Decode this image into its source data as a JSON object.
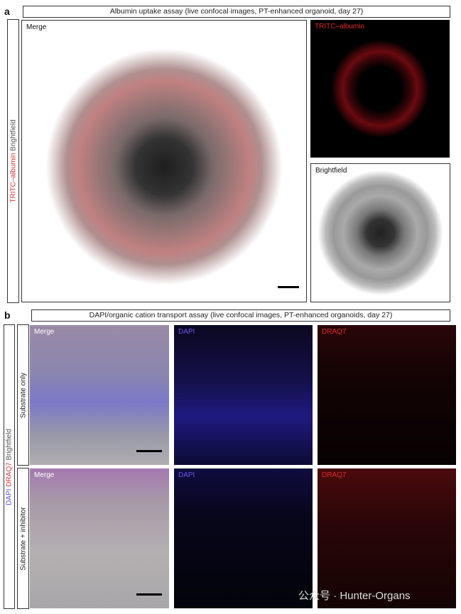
{
  "panel_a": {
    "letter": "a",
    "title": "Albumin uptake assay (live confocal images, PT-enhanced organoid, day 27)",
    "side_label": {
      "part1": "TRITC–albumin",
      "part2": " Brightfield"
    },
    "images": [
      {
        "label": "Merge"
      },
      {
        "label": "TRITC–albumin"
      },
      {
        "label": "Brightfield"
      }
    ]
  },
  "panel_b": {
    "letter": "b",
    "title": "DAPI/organic cation transport assay (live confocal images, PT-enhanced organoids, day 27)",
    "side_label": {
      "part1": "DAPI",
      "part2": " DRAQ7",
      "part3": " Brightfield"
    },
    "rows": [
      {
        "label": "Substrate only",
        "images": [
          "Merge",
          "DAPI",
          "DRAQ7"
        ]
      },
      {
        "label": "Substrate + inhibitor",
        "images": [
          "Merge",
          "DAPI",
          "DRAQ7"
        ]
      }
    ]
  },
  "colors": {
    "tritc": "#e0282c",
    "dapi": "#5a4ae0",
    "draq7": "#e0282c"
  },
  "watermark": "公众号 · Hunter-Organs"
}
